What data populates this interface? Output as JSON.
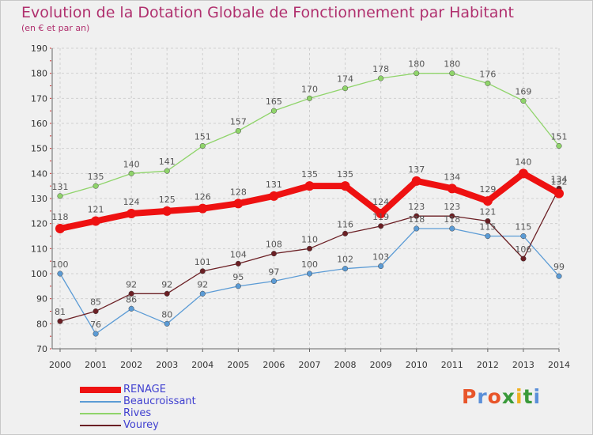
{
  "header": {
    "title": "Evolution de la Dotation Globale de Fonctionnement par Habitant",
    "subtitle": "(en € et par an)"
  },
  "logo": {
    "text": "Proxiti",
    "colors": [
      "#e8552a",
      "#5a8fd8",
      "#e8552a",
      "#3a9a3a",
      "#f0b020",
      "#3a9a3a",
      "#5a8fd8"
    ]
  },
  "chart_data": {
    "type": "line",
    "title": "Evolution de la Dotation Globale de Fonctionnement par Habitant",
    "subtitle": "(en € et par an)",
    "xlabel": "",
    "ylabel": "",
    "x": [
      "2000",
      "2001",
      "2002",
      "2003",
      "2004",
      "2005",
      "2006",
      "2007",
      "2008",
      "2009",
      "2010",
      "2011",
      "2012",
      "2013",
      "2014"
    ],
    "ylim": [
      70,
      190
    ],
    "yticks": [
      70,
      80,
      90,
      100,
      110,
      120,
      130,
      140,
      150,
      160,
      170,
      180,
      190
    ],
    "grid": true,
    "legend_position": "bottom-left",
    "series": [
      {
        "name": "RENAGE",
        "color": "#ee1111",
        "values": [
          118,
          121,
          124,
          125,
          126,
          128,
          131,
          135,
          135,
          124,
          137,
          134,
          129,
          140,
          132
        ]
      },
      {
        "name": "Beaucroissant",
        "color": "#5b9bd5",
        "values": [
          100,
          76,
          86,
          80,
          92,
          95,
          97,
          100,
          102,
          103,
          118,
          118,
          115,
          115,
          99
        ]
      },
      {
        "name": "Rives",
        "color": "#8fd46a",
        "values": [
          131,
          135,
          140,
          141,
          151,
          157,
          165,
          170,
          174,
          178,
          180,
          180,
          176,
          169,
          151
        ]
      },
      {
        "name": "Vourey",
        "color": "#6b1f24",
        "values": [
          81,
          85,
          92,
          92,
          101,
          104,
          108,
          110,
          116,
          119,
          123,
          123,
          121,
          106,
          134
        ]
      }
    ]
  }
}
